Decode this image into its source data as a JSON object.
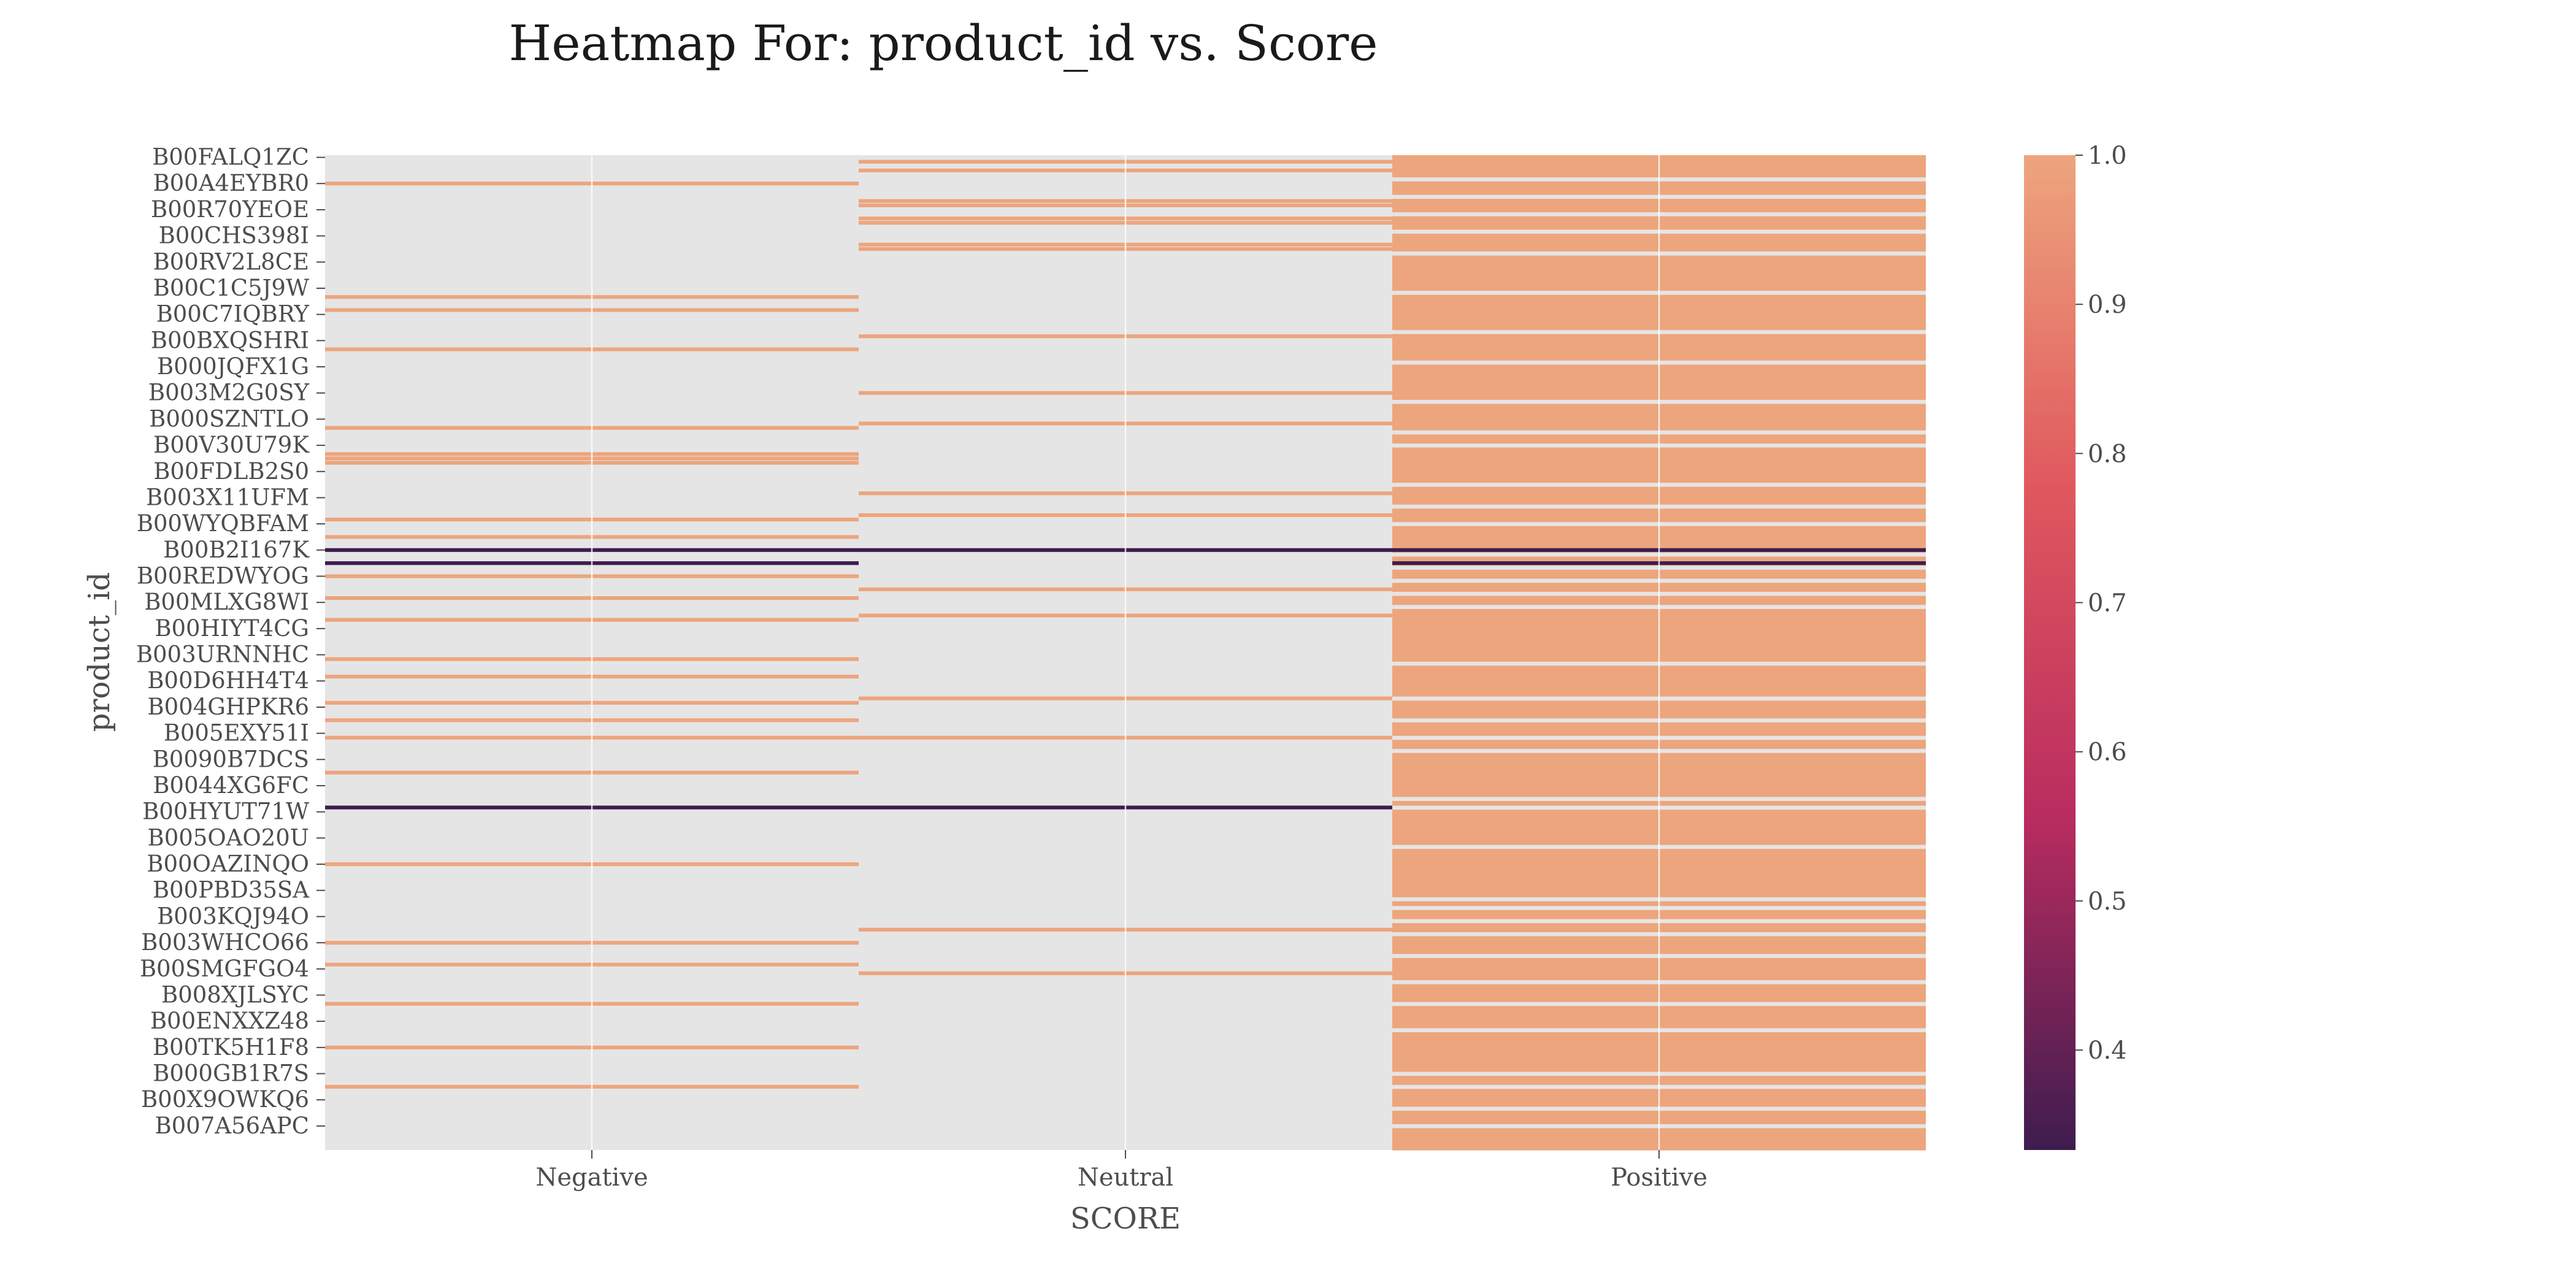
{
  "chart_data": {
    "type": "heatmap",
    "title": "Heatmap For: product_id vs. Score",
    "xlabel": "SCORE",
    "ylabel": "product_id",
    "x_categories": [
      "Negative",
      "Neutral",
      "Positive"
    ],
    "y_tick_labels": [
      "B00FALQ1ZC",
      "B00A4EYBR0",
      "B00R70YEOE",
      "B00CHS398I",
      "B00RV2L8CE",
      "B00C1C5J9W",
      "B00C7IQBRY",
      "B00BXQSHRI",
      "B000JQFX1G",
      "B003M2G0SY",
      "B000SZNTLO",
      "B00V30U79K",
      "B00FDLB2S0",
      "B003X11UFM",
      "B00WYQBFAM",
      "B00B2I167K",
      "B00REDWYOG",
      "B00MLXG8WI",
      "B00HIYT4CG",
      "B003URNNHC",
      "B00D6HH4T4",
      "B004GHPKR6",
      "B005EXY51I",
      "B0090B7DCS",
      "B0044XG6FC",
      "B00HYUT71W",
      "B005OAO20U",
      "B00OAZINQO",
      "B00PBD35SA",
      "B003KQJ94O",
      "B003WHCO66",
      "B00SMGFGO4",
      "B008XJLSYC",
      "B00ENXXZ48",
      "B00TK5H1F8",
      "B000GB1R7S",
      "B00X9OWKQ6",
      "B007A56APC"
    ],
    "n_rows": 228,
    "colorbar": {
      "min": 0.333,
      "max": 1.0,
      "ticks": [
        1.0,
        0.9,
        0.8,
        0.7,
        0.6,
        0.5,
        0.4
      ],
      "colors": [
        "#3e1c4f",
        "#b92c5f",
        "#e0585e",
        "#eda57d"
      ]
    },
    "missing_color": "#e5e5e5",
    "cells": [
      {
        "row": 3,
        "col": 1,
        "value": 1.0
      },
      {
        "row": 10,
        "col": 1,
        "value": 1.0
      },
      {
        "row": 11,
        "col": 1,
        "value": 1.0
      },
      {
        "row": 14,
        "col": 1,
        "value": 1.0
      },
      {
        "row": 20,
        "col": 1,
        "value": 1.0
      },
      {
        "row": 21,
        "col": 1,
        "value": 1.0
      },
      {
        "row": 6,
        "col": 0,
        "value": 1.0
      },
      {
        "row": 32,
        "col": 0,
        "value": 1.0
      },
      {
        "row": 35,
        "col": 0,
        "value": 1.0
      },
      {
        "row": 44,
        "col": 0,
        "value": 1.0
      },
      {
        "row": 62,
        "col": 0,
        "value": 1.0
      },
      {
        "row": 68,
        "col": 0,
        "value": 1.0
      },
      {
        "row": 69,
        "col": 0,
        "value": 1.0
      },
      {
        "row": 70,
        "col": 0,
        "value": 1.0
      },
      {
        "row": 83,
        "col": 0,
        "value": 1.0
      },
      {
        "row": 87,
        "col": 0,
        "value": 1.0
      },
      {
        "row": 90,
        "col": 0,
        "value": 0.333
      },
      {
        "row": 90,
        "col": 1,
        "value": 0.333
      },
      {
        "row": 90,
        "col": 2,
        "value": 0.333
      },
      {
        "row": 93,
        "col": 0,
        "value": 0.333
      },
      {
        "row": 93,
        "col": 2,
        "value": 0.333
      },
      {
        "row": 96,
        "col": 0,
        "value": 1.0
      },
      {
        "row": 101,
        "col": 0,
        "value": 1.0
      },
      {
        "row": 106,
        "col": 0,
        "value": 1.0
      },
      {
        "row": 115,
        "col": 0,
        "value": 1.0
      },
      {
        "row": 119,
        "col": 0,
        "value": 1.0
      },
      {
        "row": 125,
        "col": 0,
        "value": 1.0
      },
      {
        "row": 129,
        "col": 0,
        "value": 1.0
      },
      {
        "row": 133,
        "col": 0,
        "value": 1.0
      },
      {
        "row": 141,
        "col": 0,
        "value": 1.0
      },
      {
        "row": 149,
        "col": 0,
        "value": 0.333
      },
      {
        "row": 149,
        "col": 1,
        "value": 0.333
      },
      {
        "row": 162,
        "col": 0,
        "value": 1.0
      },
      {
        "row": 180,
        "col": 0,
        "value": 1.0
      },
      {
        "row": 185,
        "col": 0,
        "value": 1.0
      },
      {
        "row": 194,
        "col": 0,
        "value": 1.0
      },
      {
        "row": 204,
        "col": 0,
        "value": 1.0
      },
      {
        "row": 213,
        "col": 0,
        "value": 1.0
      },
      {
        "row": 1,
        "col": 1,
        "value": 1.0
      },
      {
        "row": 15,
        "col": 1,
        "value": 1.0
      },
      {
        "row": 41,
        "col": 1,
        "value": 1.0
      },
      {
        "row": 54,
        "col": 1,
        "value": 1.0
      },
      {
        "row": 61,
        "col": 1,
        "value": 1.0
      },
      {
        "row": 77,
        "col": 1,
        "value": 1.0
      },
      {
        "row": 82,
        "col": 1,
        "value": 1.0
      },
      {
        "row": 99,
        "col": 1,
        "value": 1.0
      },
      {
        "row": 105,
        "col": 1,
        "value": 1.0
      },
      {
        "row": 124,
        "col": 1,
        "value": 1.0
      },
      {
        "row": 133,
        "col": 1,
        "value": 1.0
      },
      {
        "row": 177,
        "col": 1,
        "value": 1.0
      },
      {
        "row": 187,
        "col": 1,
        "value": 1.0
      }
    ],
    "positive_gaps": [
      5,
      9,
      13,
      17,
      22,
      31,
      40,
      47,
      56,
      63,
      66,
      75,
      80,
      84,
      91,
      94,
      97,
      100,
      103,
      116,
      124,
      129,
      133,
      136,
      147,
      149,
      158,
      170,
      172,
      175,
      178,
      183,
      189,
      194,
      200,
      210,
      213,
      218,
      222
    ]
  }
}
